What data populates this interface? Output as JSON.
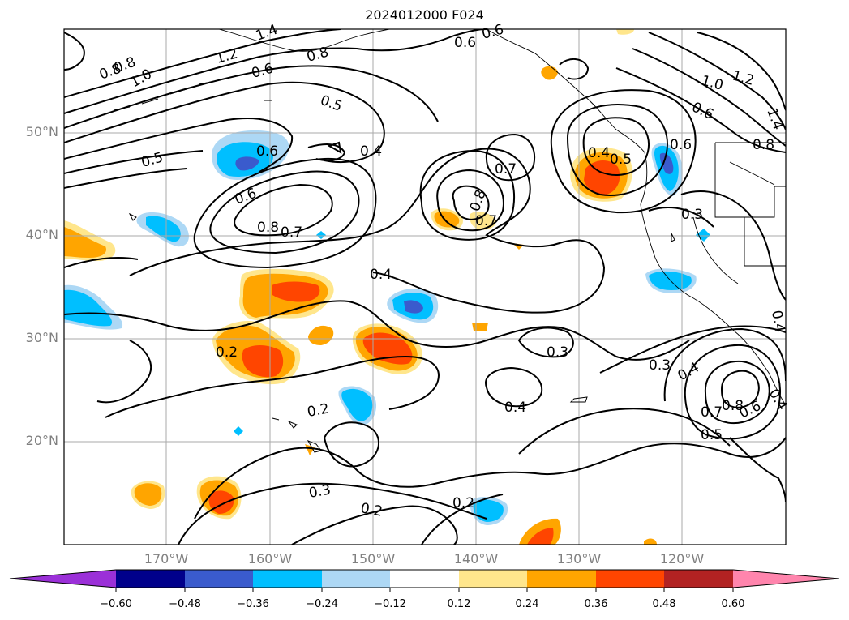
{
  "title": "2024012000 F024",
  "lat_labels": [
    {
      "label": "50°N",
      "value": 50
    },
    {
      "label": "40°N",
      "value": 40
    },
    {
      "label": "30°N",
      "value": 30
    },
    {
      "label": "20°N",
      "value": 20
    }
  ],
  "lon_labels": [
    {
      "label": "170°W",
      "value": -170
    },
    {
      "label": "160°W",
      "value": -160
    },
    {
      "label": "150°W",
      "value": -150
    },
    {
      "label": "140°W",
      "value": -140
    },
    {
      "label": "130°W",
      "value": -130
    },
    {
      "label": "120°W",
      "value": -120
    }
  ],
  "colorbar": {
    "colors": [
      "#9b30d8",
      "#00008b",
      "#3a5bcd",
      "#00bfff",
      "#add8f5",
      "#ffffff",
      "#ffe68c",
      "#ffa500",
      "#ff4500",
      "#b22222",
      "#ff85ad"
    ],
    "ticks": [
      "−0.60",
      "−0.48",
      "−0.36",
      "−0.24",
      "−0.12",
      "0.12",
      "0.24",
      "0.36",
      "0.48",
      "0.60"
    ]
  },
  "contour_labels": [
    "1.4",
    "0.8",
    "1.2",
    "0.8",
    "1.0",
    "0.6",
    "0.8",
    "0.5",
    "0.6",
    "0.6",
    "0.5",
    "0.6",
    "0.6",
    "0.4",
    "0.7",
    "0.8",
    "0.7",
    "0.4",
    "0.5",
    "0.6",
    "0.8",
    "0.7",
    "0.4",
    "0.3",
    "0.2",
    "0.3",
    "0.4",
    "0.3",
    "0.4",
    "0.2",
    "0.7",
    "0.8",
    "0.6",
    "0.5",
    "0.3",
    "0.2",
    "0.2",
    "1.0",
    "1.2",
    "0.6",
    "1.4",
    "0.8",
    "0.4",
    "0.4"
  ]
}
